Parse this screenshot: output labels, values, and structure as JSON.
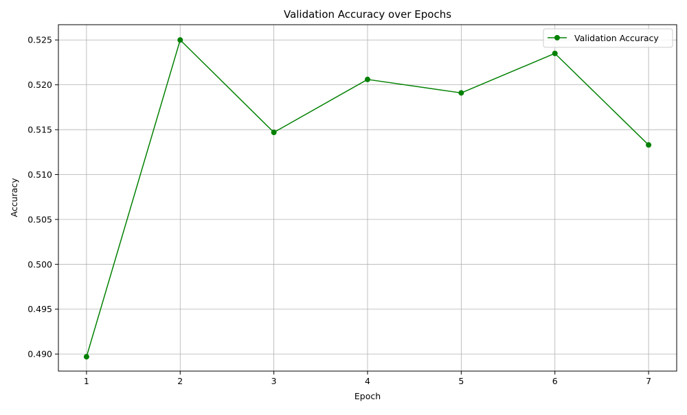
{
  "chart_data": {
    "type": "line",
    "title": "Validation Accuracy over Epochs",
    "xlabel": "Epoch",
    "ylabel": "Accuracy",
    "x": [
      1,
      2,
      3,
      4,
      5,
      6,
      7
    ],
    "series": [
      {
        "name": "Validation Accuracy",
        "values": [
          0.4897,
          0.525,
          0.5147,
          0.5206,
          0.5191,
          0.5235,
          0.5133
        ],
        "color": "#008000",
        "marker": "circle"
      }
    ],
    "xlim": [
      0.7,
      7.3
    ],
    "ylim": [
      0.4881,
      0.5267
    ],
    "xticks": [
      "1",
      "2",
      "3",
      "4",
      "5",
      "6",
      "7"
    ],
    "yticks": [
      "0.490",
      "0.495",
      "0.500",
      "0.505",
      "0.510",
      "0.515",
      "0.520",
      "0.525"
    ],
    "grid": true,
    "legend_position": "upper-right",
    "colors": {
      "grid": "#b0b0b0",
      "axes": "#000000"
    }
  }
}
